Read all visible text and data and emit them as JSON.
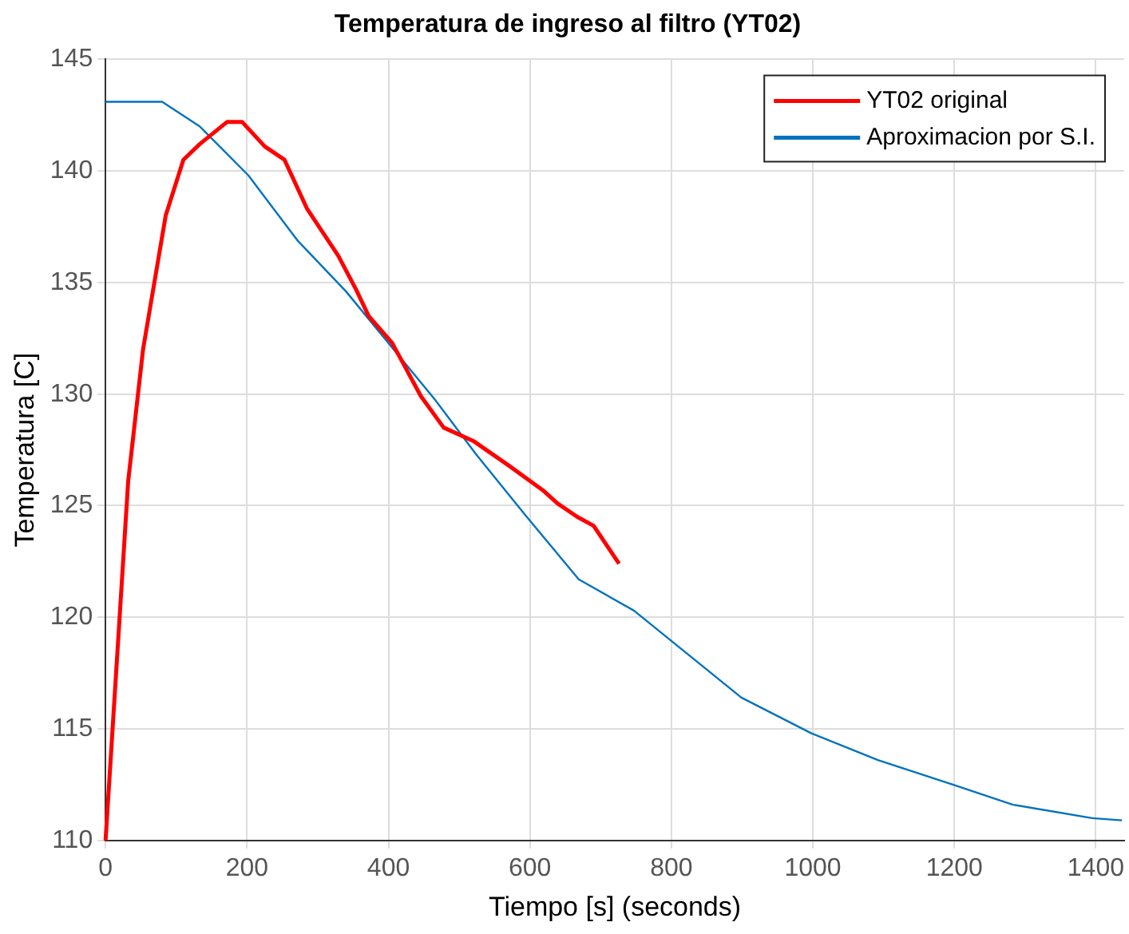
{
  "chart_data": {
    "type": "line",
    "title": "Temperatura de ingreso al filtro (YT02)",
    "xlabel": "Tiempo [s] (seconds)",
    "ylabel": "Temperatura [C]",
    "xlim": [
      0,
      1440
    ],
    "xticks": [
      0,
      200,
      400,
      600,
      800,
      1000,
      1200,
      1400
    ],
    "ylim": [
      110,
      145
    ],
    "yticks": [
      110,
      115,
      120,
      125,
      130,
      135,
      140,
      145
    ],
    "grid": true,
    "legend": "top right",
    "marker": "none",
    "line_style": "solid",
    "series": [
      {
        "name": "YT02 original",
        "color": "#ff0000",
        "x": [
          0,
          32,
          37,
          53,
          85,
          110,
          133,
          172,
          193,
          225,
          253,
          285,
          329,
          354,
          372,
          405,
          446,
          478,
          520,
          570,
          618,
          639,
          667,
          690,
          726
        ],
        "values": [
          110,
          126.1,
          127.5,
          132,
          138,
          140.5,
          141.2,
          142.2,
          142.2,
          141.1,
          140.5,
          138.3,
          136.2,
          134.7,
          133.5,
          132.3,
          129.9,
          128.5,
          127.9,
          126.8,
          125.7,
          125.1,
          124.5,
          124.1,
          122.4
        ]
      },
      {
        "name": "Aproximacion por S.I.",
        "color": "#0072bd",
        "x": [
          0,
          80,
          133,
          202,
          271,
          340,
          467,
          524,
          593,
          669,
          747,
          899,
          998,
          1092,
          1198,
          1283,
          1395,
          1437
        ],
        "values": [
          143.1,
          143.1,
          142,
          139.8,
          136.9,
          134.6,
          129.7,
          127.3,
          124.6,
          121.7,
          120.3,
          116.4,
          114.8,
          113.6,
          112.5,
          111.6,
          111,
          110.9
        ]
      }
    ]
  }
}
